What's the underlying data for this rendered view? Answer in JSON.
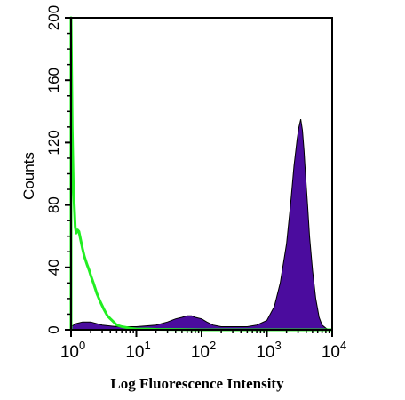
{
  "chart_data": {
    "type": "area",
    "xlabel": "Log Fluorescence Intensity",
    "ylabel": "Counts",
    "x_scale": "log",
    "xlim": [
      1,
      10000
    ],
    "ylim": [
      0,
      200
    ],
    "x_ticks": [
      {
        "value": 1,
        "base": "10",
        "exp": "0"
      },
      {
        "value": 10,
        "base": "10",
        "exp": "1"
      },
      {
        "value": 100,
        "base": "10",
        "exp": "2"
      },
      {
        "value": 1000,
        "base": "10",
        "exp": "3"
      },
      {
        "value": 10000,
        "base": "10",
        "exp": "4"
      }
    ],
    "y_ticks": [
      "0",
      "40",
      "80",
      "120",
      "160",
      "200"
    ],
    "grid": false,
    "series": [
      {
        "color": "#4b0c9e",
        "style": "filled",
        "x": [
          1.0,
          1.2,
          1.5,
          2.0,
          3.0,
          5.0,
          10,
          20,
          30,
          40,
          50,
          60,
          70,
          80,
          100,
          120,
          150,
          200,
          300,
          500,
          700,
          1000,
          1300,
          1600,
          2000,
          2300,
          2600,
          2900,
          3100,
          3300,
          3500,
          3700,
          3900,
          4200,
          4500,
          5000,
          5600,
          6300,
          7000,
          8000,
          9000,
          10000
        ],
        "y": [
          2,
          4,
          5,
          5,
          3,
          2,
          2,
          3,
          5,
          7,
          8,
          9,
          9,
          8,
          7,
          5,
          3,
          2,
          2,
          2,
          3,
          6,
          15,
          30,
          55,
          80,
          105,
          122,
          130,
          135,
          128,
          115,
          100,
          80,
          60,
          38,
          20,
          8,
          3,
          1,
          0,
          0
        ]
      },
      {
        "color": "#22ee22",
        "style": "line",
        "x": [
          1.0,
          1.04,
          1.08,
          1.12,
          1.16,
          1.2,
          1.26,
          1.32,
          1.4,
          1.5,
          1.6,
          1.75,
          1.9,
          2.0,
          2.2,
          2.5,
          2.8,
          3.2,
          3.6,
          4.0,
          4.5,
          5.0,
          6.0,
          7.0,
          8.0,
          10,
          15,
          20,
          30,
          50,
          100,
          1000,
          10000
        ],
        "y": [
          200,
          130,
          95,
          80,
          66,
          62,
          64,
          63,
          58,
          52,
          47,
          42,
          38,
          35,
          30,
          23,
          18,
          13,
          9,
          7,
          5,
          3,
          2,
          1.5,
          1,
          0.5,
          0.5,
          0.3,
          0.2,
          0.1,
          0,
          0,
          0
        ]
      }
    ]
  }
}
